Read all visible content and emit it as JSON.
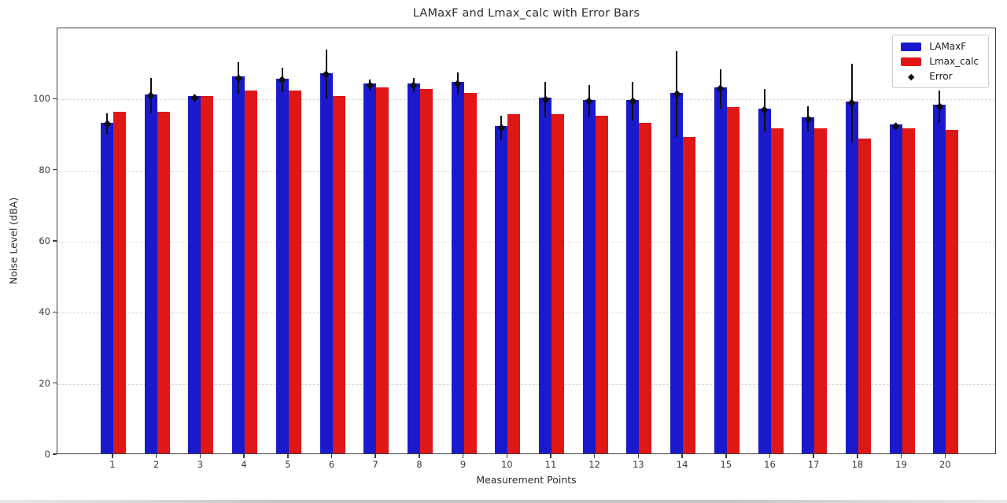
{
  "figure": {
    "title": "LAMaxF and Lmax_calc with Error Bars",
    "xlabel": "Measurement Points",
    "ylabel": "Noise Level (dBA)"
  },
  "legend": {
    "position": "upper right",
    "items": [
      {
        "id": "lamaxf",
        "label": "LAMaxF",
        "marker": "rect",
        "color": "#1a1acc"
      },
      {
        "id": "lmax-calc",
        "label": "Lmax_calc",
        "marker": "rect",
        "color": "#e01717"
      },
      {
        "id": "error",
        "label": "Error",
        "marker": "diamond",
        "color": "#0d0d0d"
      }
    ]
  },
  "chart_data": {
    "type": "bar",
    "title": "LAMaxF and Lmax_calc with Error Bars",
    "xlabel": "Measurement Points",
    "ylabel": "Noise Level (dBA)",
    "categories": [
      "1",
      "2",
      "3",
      "4",
      "5",
      "6",
      "7",
      "8",
      "9",
      "10",
      "11",
      "12",
      "13",
      "14",
      "15",
      "16",
      "17",
      "18",
      "19",
      "20"
    ],
    "series": [
      {
        "name": "LAMaxF",
        "color": "#1a1acc",
        "values": [
          93,
          101,
          100.5,
          106,
          105.5,
          107,
          104,
          104,
          104.5,
          92,
          100,
          99.5,
          99.5,
          101.5,
          103,
          97,
          94.5,
          99,
          92.5,
          98
        ]
      },
      {
        "name": "Lmax_calc",
        "color": "#e01717",
        "values": [
          96,
          96,
          100.5,
          102,
          102,
          100.5,
          103,
          102.5,
          101.5,
          95.5,
          95.5,
          95,
          93,
          89,
          97.5,
          91.5,
          91.5,
          88.5,
          91.5,
          91
        ]
      }
    ],
    "error_bars": {
      "attached_to": "LAMaxF",
      "symmetric": true,
      "marker": "diamond",
      "color": "#0d0d0d",
      "values": [
        3,
        5,
        1,
        4.5,
        3.5,
        7,
        1.5,
        2,
        3,
        3.5,
        5,
        4.5,
        5.5,
        12,
        5.5,
        6,
        3.5,
        11,
        1,
        4.5
      ]
    },
    "ylim": [
      0,
      120
    ],
    "yticks": [
      0,
      20,
      40,
      60,
      80,
      100
    ],
    "grid": "horizontal-dashed",
    "legend_position": "upper right"
  }
}
